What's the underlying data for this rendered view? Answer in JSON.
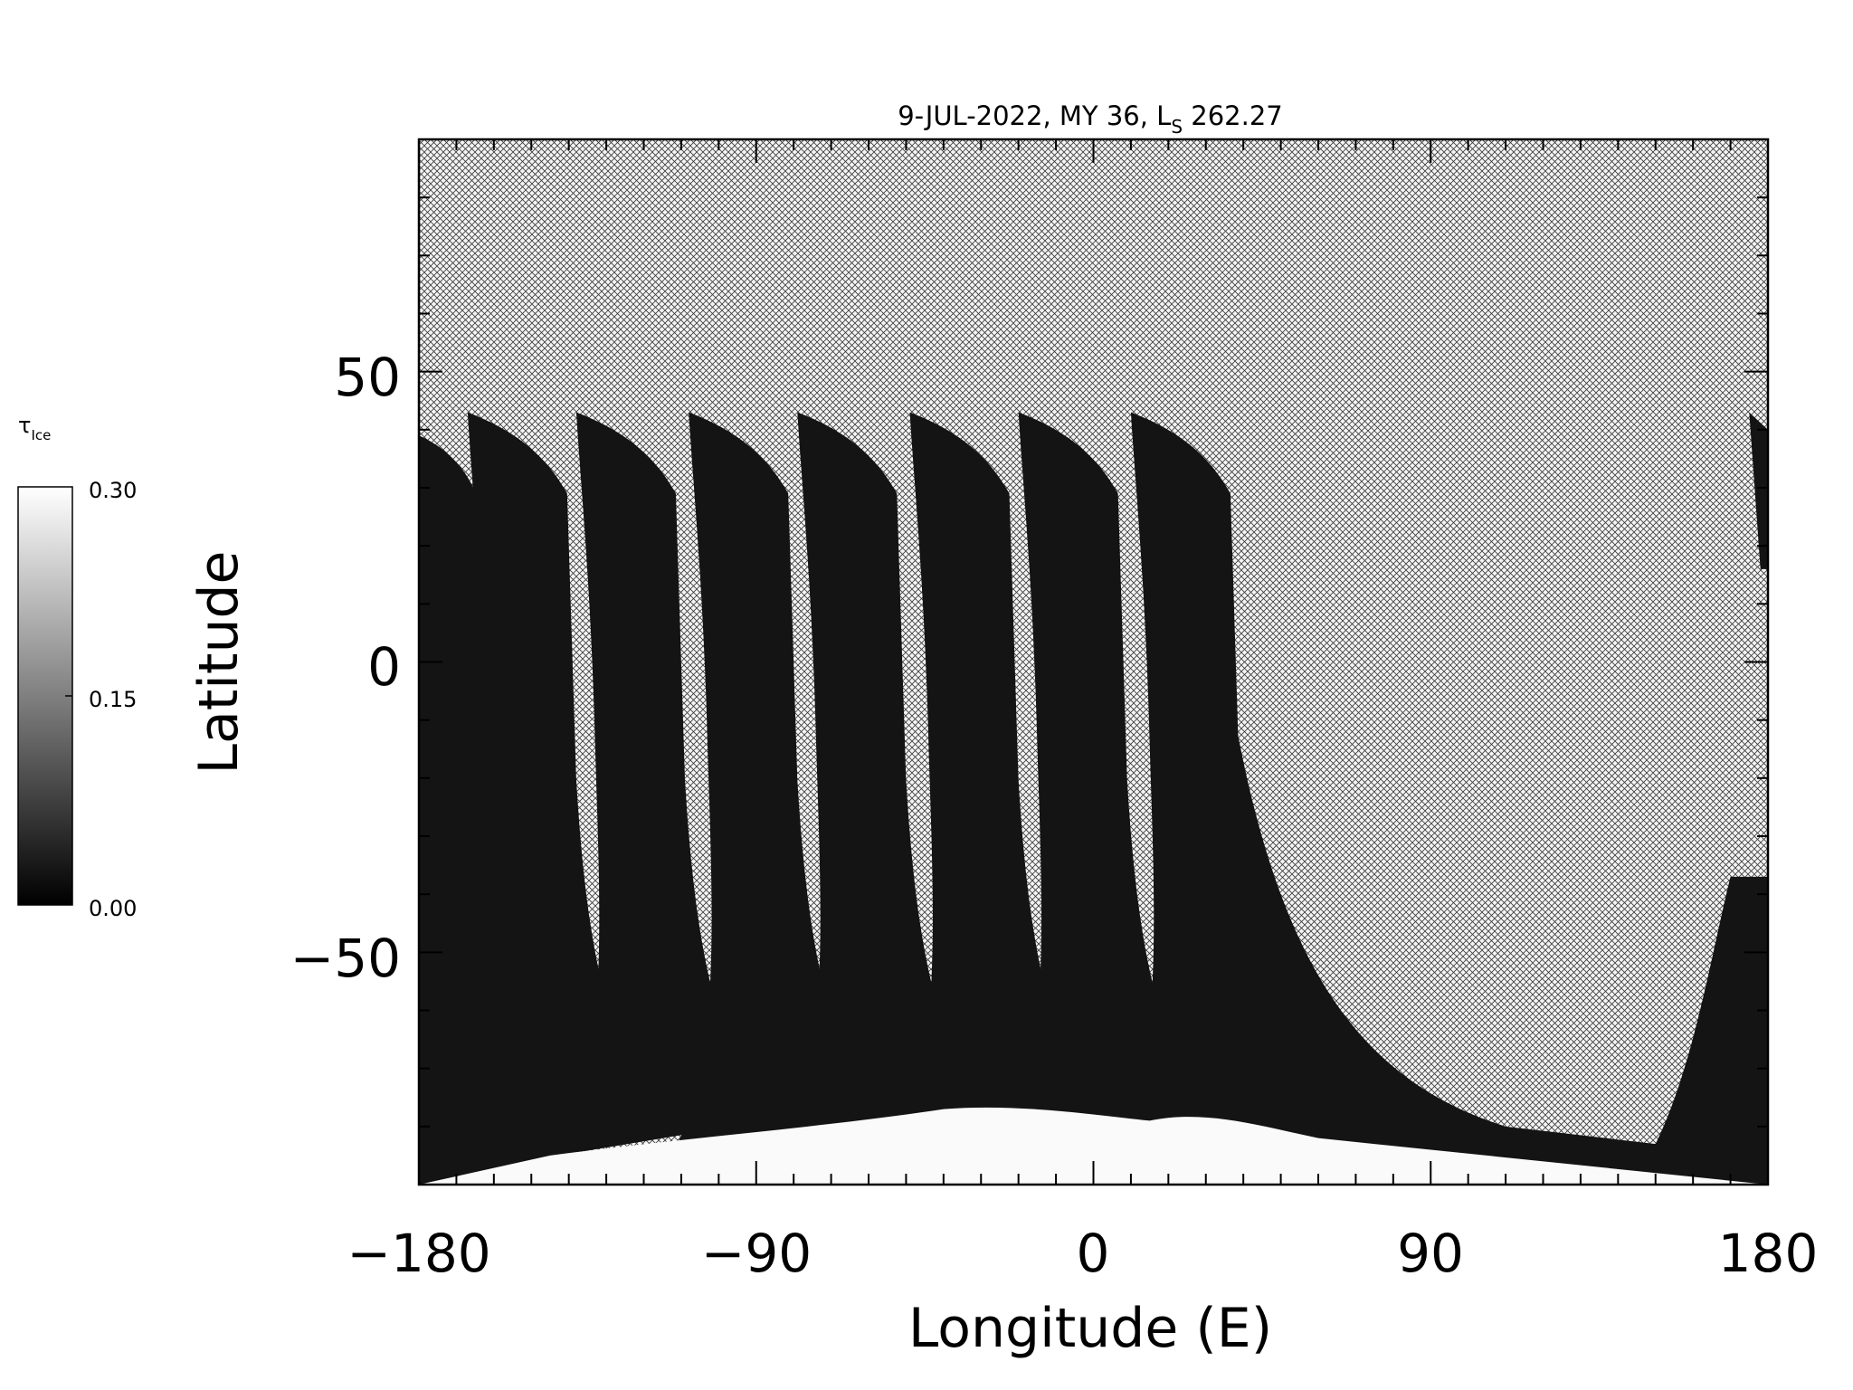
{
  "title": {
    "main": "9-JUL-2022, MY 36,  L",
    "sub": "S",
    "value": " 262.27"
  },
  "x_axis": {
    "label": "Longitude (E)",
    "ticks": [
      "−180",
      "−90",
      "0",
      "90",
      "180"
    ],
    "range": [
      -180,
      180
    ],
    "major_step": 90,
    "minor_step": 10
  },
  "y_axis": {
    "label": "Latitude",
    "ticks": [
      "−50",
      "0",
      "50"
    ],
    "range": [
      -90,
      90
    ],
    "major_step": 50,
    "minor_step": 10
  },
  "colorbar": {
    "symbol": "τ",
    "subscript": "Ice",
    "ticks": [
      "0.30",
      "0.15",
      "0.00"
    ],
    "range": [
      0.0,
      0.3
    ],
    "colormap": "grayscale"
  },
  "chart_data": {
    "type": "heatmap",
    "title": "9-JUL-2022, MY 36,  LS 262.27",
    "xlabel": "Longitude (E)",
    "ylabel": "Latitude",
    "xlim": [
      -180,
      180
    ],
    "ylim": [
      -90,
      90
    ],
    "xticks": [
      -180,
      -90,
      0,
      90,
      180
    ],
    "yticks": [
      -50,
      0,
      50
    ],
    "colorbar_label": "τIce",
    "colorbar_range": [
      0.0,
      0.3
    ],
    "no_data_pattern": "crosshatch",
    "description_values": {
      "orbit_swath_count": 9,
      "south_polar_cap_value": 0.3,
      "typical_swath_value": 0.02
    }
  },
  "colors": {
    "background": "#ffffff",
    "no_data": "#d8d8d8",
    "low_value": "#141414",
    "high_value": "#fafafa"
  }
}
